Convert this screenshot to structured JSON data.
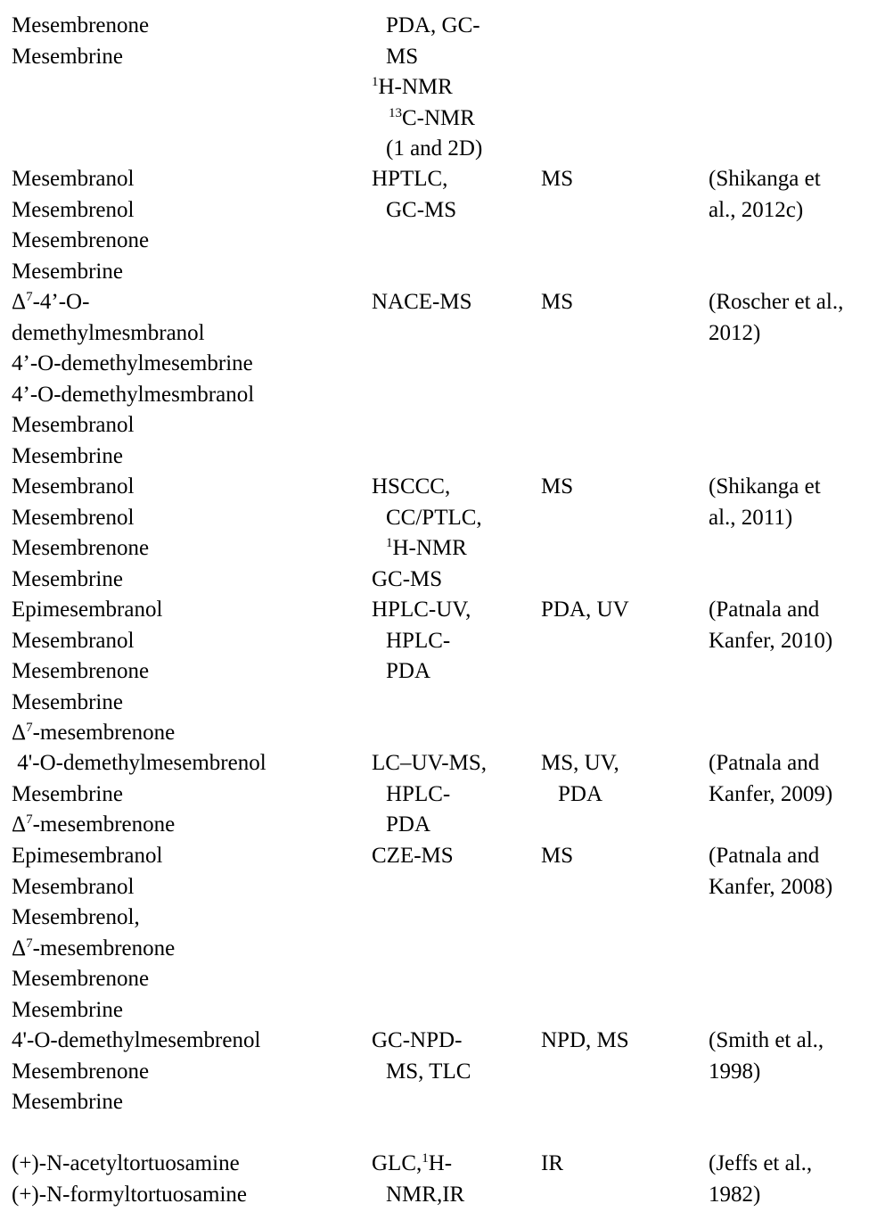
{
  "rows": [
    {
      "compounds": [
        "Mesembrenone",
        "Mesembrine"
      ],
      "method": [
        {
          "sup": "",
          "text": "PDA, GC-"
        },
        {
          "sup": "",
          "text": "MS"
        },
        {
          "sup": "1",
          "text": "H-NMR"
        },
        {
          "sup": "13",
          "text": "C-NMR"
        },
        {
          "sup": "",
          "text": "(1 and 2D)"
        }
      ],
      "detection": [],
      "reference": []
    },
    {
      "compounds": [
        "Mesembranol",
        "Mesembrenol",
        "Mesembrenone",
        "Mesembrine"
      ],
      "method": [
        {
          "sup": "",
          "text": "HPTLC,"
        },
        {
          "sup": "",
          "text": "GC-MS"
        }
      ],
      "detection": [
        "MS"
      ],
      "reference": [
        "(Shikanga et",
        "al., 2012c)"
      ]
    },
    {
      "compounds": [
        {
          "sup": "7",
          "pre": "Δ",
          "text": "-4’-O-"
        },
        "demethylmesmbranol",
        "4’-O-demethylmesembrine",
        "4’-O-demethylmesmbranol",
        "Mesembranol",
        "Mesembrine"
      ],
      "method": [
        {
          "sup": "",
          "text": "NACE-MS"
        }
      ],
      "detection": [
        "MS"
      ],
      "reference": [
        "(Roscher et al.,",
        "2012)"
      ]
    },
    {
      "compounds": [
        "Mesembranol",
        "Mesembrenol",
        "Mesembrenone",
        "Mesembrine"
      ],
      "method": [
        {
          "sup": "",
          "text": "HSCCC,"
        },
        {
          "sup": "",
          "text": "CC/PTLC,"
        },
        {
          "sup": "1",
          "text": "H-NMR"
        },
        {
          "sup": "",
          "text": "GC-MS"
        }
      ],
      "detection": [
        "MS"
      ],
      "reference": [
        "(Shikanga et",
        "al., 2011)"
      ]
    },
    {
      "compounds": [
        "Epimesembranol",
        "Mesembranol",
        "Mesembrenone",
        "Mesembrine",
        {
          "sup": "7",
          "pre": "Δ",
          "text": "-mesembrenone"
        }
      ],
      "method": [
        {
          "sup": "",
          "text": "HPLC-UV,"
        },
        {
          "sup": "",
          "text": "HPLC-"
        },
        {
          "sup": "",
          "text": "PDA"
        }
      ],
      "detection": [
        "PDA, UV"
      ],
      "reference": [
        "(Patnala and",
        "Kanfer, 2010)"
      ]
    },
    {
      "compounds": [
        " 4'-O-demethylmesembrenol",
        "Mesembrine",
        {
          "sup": "7",
          "pre": "Δ",
          "text": "-mesembrenone"
        }
      ],
      "method": [
        {
          "sup": "",
          "text": "LC–UV-MS,"
        },
        {
          "sup": "",
          "text": "HPLC-"
        },
        {
          "sup": "",
          "text": "PDA"
        }
      ],
      "detection": [
        "MS, UV,",
        "PDA"
      ],
      "reference": [
        "(Patnala and",
        "Kanfer, 2009)"
      ]
    },
    {
      "compounds": [
        "Epimesembranol",
        "Mesembranol",
        "Mesembrenol,",
        {
          "sup": "7",
          "pre": "Δ",
          "text": "-mesembrenone"
        },
        "Mesembrenone",
        "Mesembrine"
      ],
      "method": [
        {
          "sup": "",
          "text": "CZE-MS"
        }
      ],
      "detection": [
        "MS"
      ],
      "reference": [
        "(Patnala and",
        "Kanfer, 2008)"
      ]
    },
    {
      "compounds": [
        "4'-O-demethylmesembrenol",
        "Mesembrenone",
        "Mesembrine"
      ],
      "method": [
        {
          "sup": "",
          "text": "GC-NPD-"
        },
        {
          "sup": "",
          "text": "MS, TLC"
        }
      ],
      "detection": [
        "NPD, MS"
      ],
      "reference": [
        "(Smith et al.,",
        "1998)"
      ]
    },
    {
      "compounds": [
        "(+)-N-acetyltortuosamine",
        "(+)-N-formyltortuosamine"
      ],
      "method": [
        {
          "pre": "GLC,",
          "sup": "1",
          "text": "H-"
        },
        {
          "sup": "",
          "text": "NMR,IR"
        }
      ],
      "detection": [
        "IR"
      ],
      "reference": [
        "(Jeffs et al.,",
        "1982)"
      ]
    }
  ]
}
